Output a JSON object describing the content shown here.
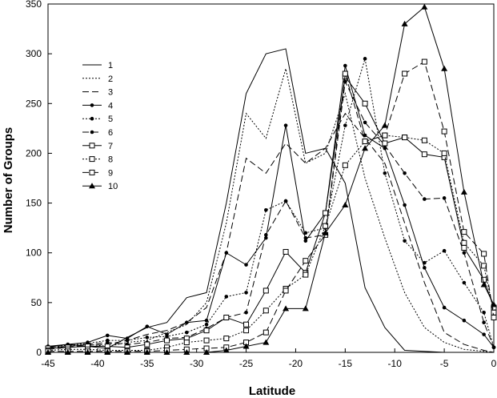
{
  "chart_data": {
    "type": "line",
    "title": "",
    "xlabel": "Latitude",
    "ylabel": "Number of Groups",
    "xlim": [
      -45,
      0
    ],
    "ylim": [
      0,
      350
    ],
    "xticks": [
      -45,
      -40,
      -35,
      -30,
      -25,
      -20,
      -15,
      -10,
      -5,
      0
    ],
    "yticks": [
      0,
      50,
      100,
      150,
      200,
      250,
      300,
      350
    ],
    "grid": false,
    "legend_position": "upper-left",
    "x": [
      -45,
      -43,
      -41,
      -39,
      -37,
      -35,
      -33,
      -31,
      -29,
      -27,
      -25,
      -23,
      -21,
      -19,
      -17,
      -15,
      -13,
      -11,
      -9,
      -7,
      -5,
      -3,
      -1,
      0
    ],
    "series": [
      {
        "name": "1",
        "dash": "",
        "marker": "none",
        "values": [
          5,
          8,
          6,
          4,
          15,
          25,
          30,
          55,
          60,
          150,
          260,
          300,
          305,
          200,
          205,
          170,
          65,
          25,
          2,
          1,
          0,
          0,
          0,
          0
        ]
      },
      {
        "name": "2",
        "dash": "2,2",
        "marker": "none",
        "values": [
          4,
          6,
          8,
          6,
          10,
          12,
          20,
          28,
          50,
          130,
          240,
          215,
          285,
          190,
          200,
          260,
          175,
          115,
          60,
          25,
          10,
          3,
          1,
          0
        ]
      },
      {
        "name": "3",
        "dash": "8,4",
        "marker": "none",
        "values": [
          3,
          5,
          7,
          8,
          12,
          18,
          22,
          30,
          45,
          100,
          195,
          180,
          210,
          190,
          205,
          240,
          215,
          190,
          130,
          70,
          20,
          8,
          2,
          0
        ]
      },
      {
        "name": "4",
        "dash": "",
        "marker": "circle",
        "values": [
          6,
          8,
          10,
          17,
          14,
          26,
          18,
          30,
          32,
          100,
          88,
          115,
          228,
          112,
          140,
          288,
          218,
          205,
          148,
          85,
          45,
          32,
          18,
          5
        ]
      },
      {
        "name": "5",
        "dash": "2,2",
        "marker": "circle",
        "values": [
          6,
          7,
          9,
          12,
          12,
          15,
          16,
          20,
          28,
          56,
          60,
          143,
          152,
          120,
          125,
          228,
          295,
          180,
          112,
          90,
          102,
          70,
          40,
          5
        ]
      },
      {
        "name": "6",
        "dash": "8,4",
        "marker": "circle",
        "values": [
          5,
          6,
          8,
          10,
          8,
          10,
          14,
          15,
          24,
          35,
          40,
          118,
          152,
          115,
          118,
          272,
          231,
          208,
          180,
          154,
          155,
          100,
          30,
          5
        ]
      },
      {
        "name": "7",
        "dash": "",
        "marker": "square",
        "values": [
          4,
          5,
          6,
          6,
          5,
          8,
          12,
          14,
          22,
          35,
          28,
          62,
          101,
          80,
          140,
          277,
          250,
          210,
          216,
          199,
          196,
          105,
          73,
          45
        ]
      },
      {
        "name": "8",
        "dash": "2,2",
        "marker": "square",
        "values": [
          2,
          3,
          3,
          2,
          2,
          2,
          5,
          10,
          12,
          14,
          22,
          42,
          64,
          78,
          127,
          188,
          212,
          218,
          216,
          213,
          200,
          110,
          87,
          40
        ]
      },
      {
        "name": "9",
        "dash": "8,4",
        "marker": "square",
        "values": [
          1,
          1,
          1,
          1,
          1,
          1,
          2,
          3,
          4,
          5,
          10,
          20,
          62,
          92,
          118,
          280,
          212,
          218,
          280,
          292,
          222,
          121,
          99,
          35
        ]
      },
      {
        "name": "10",
        "dash": "",
        "marker": "triangle",
        "values": [
          0,
          0,
          0,
          0,
          0,
          0,
          0,
          0,
          0,
          2,
          6,
          10,
          44,
          44,
          120,
          148,
          205,
          228,
          330,
          347,
          285,
          161,
          68,
          48
        ]
      }
    ]
  }
}
